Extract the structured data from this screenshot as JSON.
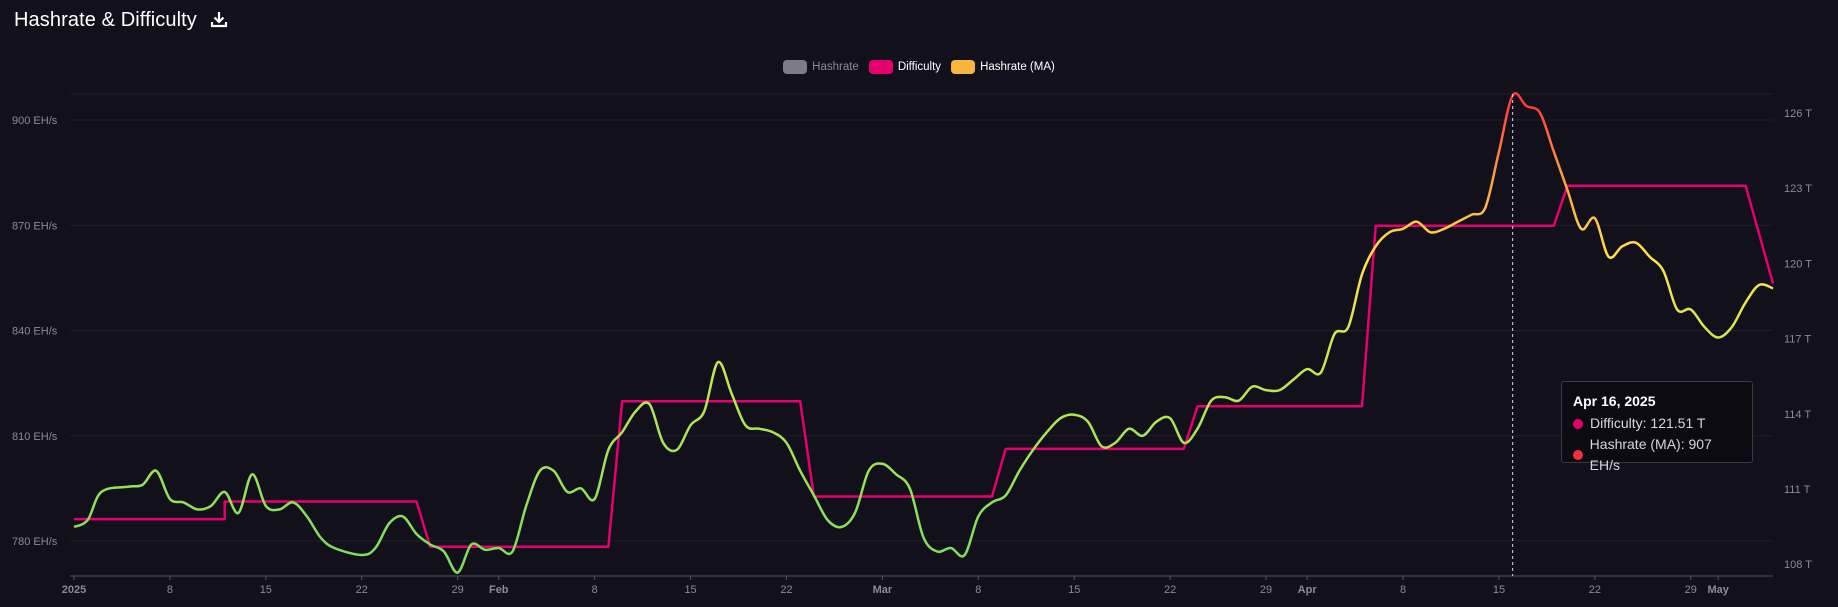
{
  "header": {
    "title": "Hashrate & Difficulty",
    "download_icon": "download-icon"
  },
  "legend": [
    {
      "label": "Hashrate",
      "color": "#7d7c85",
      "active": false
    },
    {
      "label": "Difficulty",
      "color": "#e6006e",
      "active": true
    },
    {
      "label": "Hashrate (MA)",
      "color": "#f6b73c",
      "active": true
    }
  ],
  "tooltip": {
    "date": "Apr 16, 2025",
    "difficulty": "Difficulty: 121.51 T",
    "hashrate": "Hashrate (MA): 907 EH/s",
    "difficulty_color": "#e6006e",
    "hashrate_color": "#f0303c"
  },
  "chart_data": {
    "type": "line",
    "left_axis": {
      "ticks": [
        "780 EH/s",
        "810 EH/s",
        "840 EH/s",
        "870 EH/s",
        "900 EH/s"
      ],
      "values": [
        780,
        810,
        840,
        870,
        900
      ],
      "range": [
        770,
        907
      ]
    },
    "right_axis": {
      "ticks": [
        "108 T",
        "111 T",
        "114 T",
        "117 T",
        "120 T",
        "123 T",
        "126 T"
      ],
      "values": [
        108,
        111,
        114,
        117,
        120,
        123,
        126
      ],
      "range": [
        107.6,
        127
      ]
    },
    "x_axis": {
      "start": "2025-01-01",
      "end": "2025-05-05",
      "ticks": [
        {
          "label": "2025",
          "date": "2025-01-01",
          "major": true
        },
        {
          "label": "8",
          "date": "2025-01-08",
          "major": false
        },
        {
          "label": "15",
          "date": "2025-01-15",
          "major": false
        },
        {
          "label": "22",
          "date": "2025-01-22",
          "major": false
        },
        {
          "label": "29",
          "date": "2025-01-29",
          "major": false
        },
        {
          "label": "Feb",
          "date": "2025-02-01",
          "major": true
        },
        {
          "label": "8",
          "date": "2025-02-08",
          "major": false
        },
        {
          "label": "15",
          "date": "2025-02-15",
          "major": false
        },
        {
          "label": "22",
          "date": "2025-02-22",
          "major": false
        },
        {
          "label": "Mar",
          "date": "2025-03-01",
          "major": true
        },
        {
          "label": "8",
          "date": "2025-03-08",
          "major": false
        },
        {
          "label": "15",
          "date": "2025-03-15",
          "major": false
        },
        {
          "label": "22",
          "date": "2025-03-22",
          "major": false
        },
        {
          "label": "29",
          "date": "2025-03-29",
          "major": false
        },
        {
          "label": "Apr",
          "date": "2025-04-01",
          "major": true
        },
        {
          "label": "8",
          "date": "2025-04-08",
          "major": false
        },
        {
          "label": "15",
          "date": "2025-04-15",
          "major": false
        },
        {
          "label": "22",
          "date": "2025-04-22",
          "major": false
        },
        {
          "label": "29",
          "date": "2025-04-29",
          "major": false
        },
        {
          "label": "May",
          "date": "2025-05-01",
          "major": true
        }
      ]
    },
    "crosshair_date": "2025-04-16",
    "series": [
      {
        "name": "Difficulty",
        "axis": "right",
        "color": "#e6006e",
        "step": true,
        "points": [
          [
            "2025-01-01",
            109.8
          ],
          [
            "2025-01-12",
            109.8
          ],
          [
            "2025-01-12",
            110.5
          ],
          [
            "2025-01-26",
            110.5
          ],
          [
            "2025-01-27",
            108.7
          ],
          [
            "2025-02-09",
            108.7
          ],
          [
            "2025-02-10",
            114.5
          ],
          [
            "2025-02-23",
            114.5
          ],
          [
            "2025-02-24",
            110.7
          ],
          [
            "2025-03-09",
            110.7
          ],
          [
            "2025-03-10",
            112.6
          ],
          [
            "2025-03-23",
            112.6
          ],
          [
            "2025-03-24",
            114.3
          ],
          [
            "2025-04-05",
            114.3
          ],
          [
            "2025-04-06",
            121.5
          ],
          [
            "2025-04-19",
            121.5
          ],
          [
            "2025-04-20",
            123.1
          ],
          [
            "2025-05-03",
            123.1
          ],
          [
            "2025-05-05",
            119.2
          ]
        ]
      },
      {
        "name": "Hashrate (MA)",
        "axis": "left",
        "color_stops": [
          [
            780,
            "#7ee05a"
          ],
          [
            830,
            "#c6e84e"
          ],
          [
            860,
            "#ffe44a"
          ],
          [
            885,
            "#ff9a3c"
          ],
          [
            905,
            "#ff3a3a"
          ]
        ],
        "points": [
          [
            "2025-01-01",
            784
          ],
          [
            "2025-01-02",
            786
          ],
          [
            "2025-01-03",
            794
          ],
          [
            "2025-01-05",
            795.5
          ],
          [
            "2025-01-06",
            796
          ],
          [
            "2025-01-07",
            800
          ],
          [
            "2025-01-08",
            792
          ],
          [
            "2025-01-09",
            791
          ],
          [
            "2025-01-10",
            789
          ],
          [
            "2025-01-11",
            790
          ],
          [
            "2025-01-12",
            794
          ],
          [
            "2025-01-13",
            788
          ],
          [
            "2025-01-14",
            799
          ],
          [
            "2025-01-15",
            790
          ],
          [
            "2025-01-16",
            789
          ],
          [
            "2025-01-17",
            791
          ],
          [
            "2025-01-18",
            787
          ],
          [
            "2025-01-19",
            781
          ],
          [
            "2025-01-20",
            778
          ],
          [
            "2025-01-22",
            776
          ],
          [
            "2025-01-23",
            778
          ],
          [
            "2025-01-24",
            785
          ],
          [
            "2025-01-25",
            787
          ],
          [
            "2025-01-26",
            782
          ],
          [
            "2025-01-27",
            779
          ],
          [
            "2025-01-28",
            777
          ],
          [
            "2025-01-29",
            771
          ],
          [
            "2025-01-30",
            779
          ],
          [
            "2025-01-31",
            777.5
          ],
          [
            "2025-02-01",
            778
          ],
          [
            "2025-02-02",
            777
          ],
          [
            "2025-02-03",
            790
          ],
          [
            "2025-02-04",
            800
          ],
          [
            "2025-02-05",
            800
          ],
          [
            "2025-02-06",
            794
          ],
          [
            "2025-02-07",
            795
          ],
          [
            "2025-02-08",
            792
          ],
          [
            "2025-02-09",
            806
          ],
          [
            "2025-02-10",
            811
          ],
          [
            "2025-02-11",
            817
          ],
          [
            "2025-02-12",
            819
          ],
          [
            "2025-02-13",
            808
          ],
          [
            "2025-02-14",
            806
          ],
          [
            "2025-02-15",
            813
          ],
          [
            "2025-02-16",
            817
          ],
          [
            "2025-02-17",
            831
          ],
          [
            "2025-02-18",
            822
          ],
          [
            "2025-02-19",
            813
          ],
          [
            "2025-02-20",
            812
          ],
          [
            "2025-02-21",
            811
          ],
          [
            "2025-02-22",
            808
          ],
          [
            "2025-02-23",
            800
          ],
          [
            "2025-02-24",
            793
          ],
          [
            "2025-02-25",
            786
          ],
          [
            "2025-02-26",
            784
          ],
          [
            "2025-02-27",
            788
          ],
          [
            "2025-02-28",
            800
          ],
          [
            "2025-03-01",
            802
          ],
          [
            "2025-03-02",
            799
          ],
          [
            "2025-03-03",
            795
          ],
          [
            "2025-03-04",
            781
          ],
          [
            "2025-03-05",
            777
          ],
          [
            "2025-03-06",
            778
          ],
          [
            "2025-03-07",
            776
          ],
          [
            "2025-03-08",
            787
          ],
          [
            "2025-03-09",
            791
          ],
          [
            "2025-03-10",
            793
          ],
          [
            "2025-03-11",
            800
          ],
          [
            "2025-03-12",
            806
          ],
          [
            "2025-03-13",
            811
          ],
          [
            "2025-03-14",
            815
          ],
          [
            "2025-03-15",
            816
          ],
          [
            "2025-03-16",
            814
          ],
          [
            "2025-03-17",
            807
          ],
          [
            "2025-03-18",
            808
          ],
          [
            "2025-03-19",
            812
          ],
          [
            "2025-03-20",
            810
          ],
          [
            "2025-03-21",
            814
          ],
          [
            "2025-03-22",
            815
          ],
          [
            "2025-03-23",
            808
          ],
          [
            "2025-03-24",
            812
          ],
          [
            "2025-03-25",
            820
          ],
          [
            "2025-03-26",
            821
          ],
          [
            "2025-03-27",
            820
          ],
          [
            "2025-03-28",
            824
          ],
          [
            "2025-03-29",
            823
          ],
          [
            "2025-03-30",
            823
          ],
          [
            "2025-03-31",
            826
          ],
          [
            "2025-04-01",
            829
          ],
          [
            "2025-04-02",
            828
          ],
          [
            "2025-04-03",
            839
          ],
          [
            "2025-04-04",
            841
          ],
          [
            "2025-04-05",
            856
          ],
          [
            "2025-04-06",
            864
          ],
          [
            "2025-04-07",
            868
          ],
          [
            "2025-04-08",
            869
          ],
          [
            "2025-04-09",
            871
          ],
          [
            "2025-04-10",
            868
          ],
          [
            "2025-04-11",
            869
          ],
          [
            "2025-04-12",
            871
          ],
          [
            "2025-04-13",
            873
          ],
          [
            "2025-04-14",
            875
          ],
          [
            "2025-04-15",
            891
          ],
          [
            "2025-04-16",
            907
          ],
          [
            "2025-04-17",
            904
          ],
          [
            "2025-04-18",
            902
          ],
          [
            "2025-04-19",
            891
          ],
          [
            "2025-04-20",
            880
          ],
          [
            "2025-04-21",
            869
          ],
          [
            "2025-04-22",
            872
          ],
          [
            "2025-04-23",
            861
          ],
          [
            "2025-04-24",
            864
          ],
          [
            "2025-04-25",
            865
          ],
          [
            "2025-04-26",
            861
          ],
          [
            "2025-04-27",
            857
          ],
          [
            "2025-04-28",
            846
          ],
          [
            "2025-04-29",
            846
          ],
          [
            "2025-04-30",
            841
          ],
          [
            "2025-05-01",
            838
          ],
          [
            "2025-05-02",
            841
          ],
          [
            "2025-05-03",
            848
          ],
          [
            "2025-05-04",
            853
          ],
          [
            "2025-05-05",
            852
          ]
        ]
      }
    ]
  }
}
